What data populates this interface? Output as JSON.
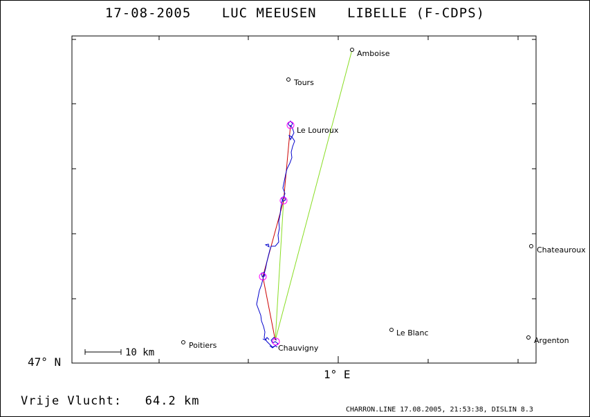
{
  "header": {
    "date": "17-08-2005",
    "pilot": "LUC MEEUSEN",
    "glider": "LIBELLE (F-CDPS)"
  },
  "axes": {
    "lat_label": "47° N",
    "lon_label": "1° E"
  },
  "scale_bar": {
    "label": "10 km"
  },
  "towns": [
    {
      "name": "Amboise"
    },
    {
      "name": "Tours"
    },
    {
      "name": "Le Louroux"
    },
    {
      "name": "Chateauroux"
    },
    {
      "name": "Chauvigny"
    },
    {
      "name": "Le Blanc"
    },
    {
      "name": "Poitiers"
    },
    {
      "name": "Argenton"
    }
  ],
  "flight": {
    "label": "Vrije Vlucht:",
    "distance": "64.2 km"
  },
  "footer": "CHARRON.LINE 17.08.2005, 21:53:38, DISLIN 8.3",
  "colors": {
    "track": "#0000cc",
    "optimized_route": "#cc0000",
    "declared_route": "#88dd22",
    "turnpoint_marker": "#ff00ff"
  }
}
